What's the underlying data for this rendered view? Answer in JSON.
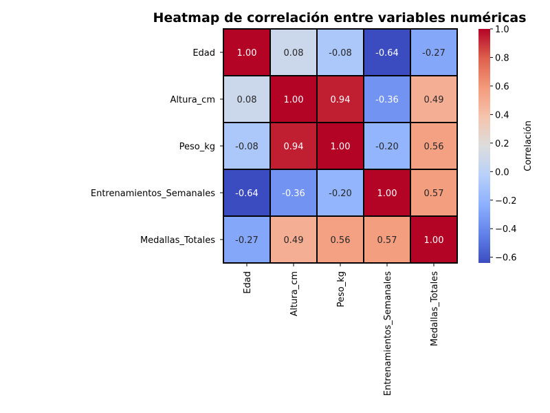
{
  "chart_data": {
    "type": "heatmap",
    "title": "Heatmap de correlación entre variables numéricas",
    "row_labels": [
      "Edad",
      "Altura_cm",
      "Peso_kg",
      "Entrenamientos_Semanales",
      "Medallas_Totales"
    ],
    "col_labels": [
      "Edad",
      "Altura_cm",
      "Peso_kg",
      "Entrenamientos_Semanales",
      "Medallas_Totales"
    ],
    "values": [
      [
        1.0,
        0.08,
        -0.08,
        -0.64,
        -0.27
      ],
      [
        0.08,
        1.0,
        0.94,
        -0.36,
        0.49
      ],
      [
        -0.08,
        0.94,
        1.0,
        -0.2,
        0.56
      ],
      [
        -0.64,
        -0.36,
        -0.2,
        1.0,
        0.57
      ],
      [
        -0.27,
        0.49,
        0.56,
        0.57,
        1.0
      ]
    ],
    "value_format": "0.00",
    "colormap": "coolwarm",
    "colorbar": {
      "label": "Correlación",
      "range": [
        -0.64,
        1.0
      ],
      "ticks": [
        1.0,
        0.8,
        0.6,
        0.4,
        0.2,
        0.0,
        -0.2,
        -0.4,
        -0.6
      ],
      "tick_labels": [
        "1.0",
        "0.8",
        "0.6",
        "0.4",
        "0.2",
        "0.0",
        "−0.2",
        "−0.4",
        "−0.6"
      ]
    },
    "cell_border_color": "#000000"
  }
}
